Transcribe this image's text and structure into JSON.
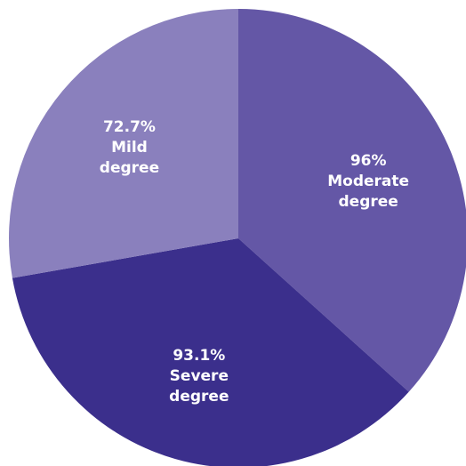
{
  "chart_data": {
    "type": "pie",
    "title": "",
    "slices": [
      {
        "value": 96,
        "value_label": "96%",
        "category": "Moderate degree",
        "label_lines": [
          "96%",
          "Moderate",
          "degree"
        ],
        "color": "#6457a6"
      },
      {
        "value": 93.1,
        "value_label": "93.1%",
        "category": "Severe degree",
        "label_lines": [
          "93.1%",
          "Severe",
          "degree"
        ],
        "color": "#3b2f8c"
      },
      {
        "value": 72.7,
        "value_label": "72.7%",
        "category": "Mild degree",
        "label_lines": [
          "72.7%",
          "Mild",
          "degree"
        ],
        "color": "#8a80bd"
      }
    ],
    "legend": "none",
    "start_direction": "top",
    "direction": "clockwise"
  }
}
